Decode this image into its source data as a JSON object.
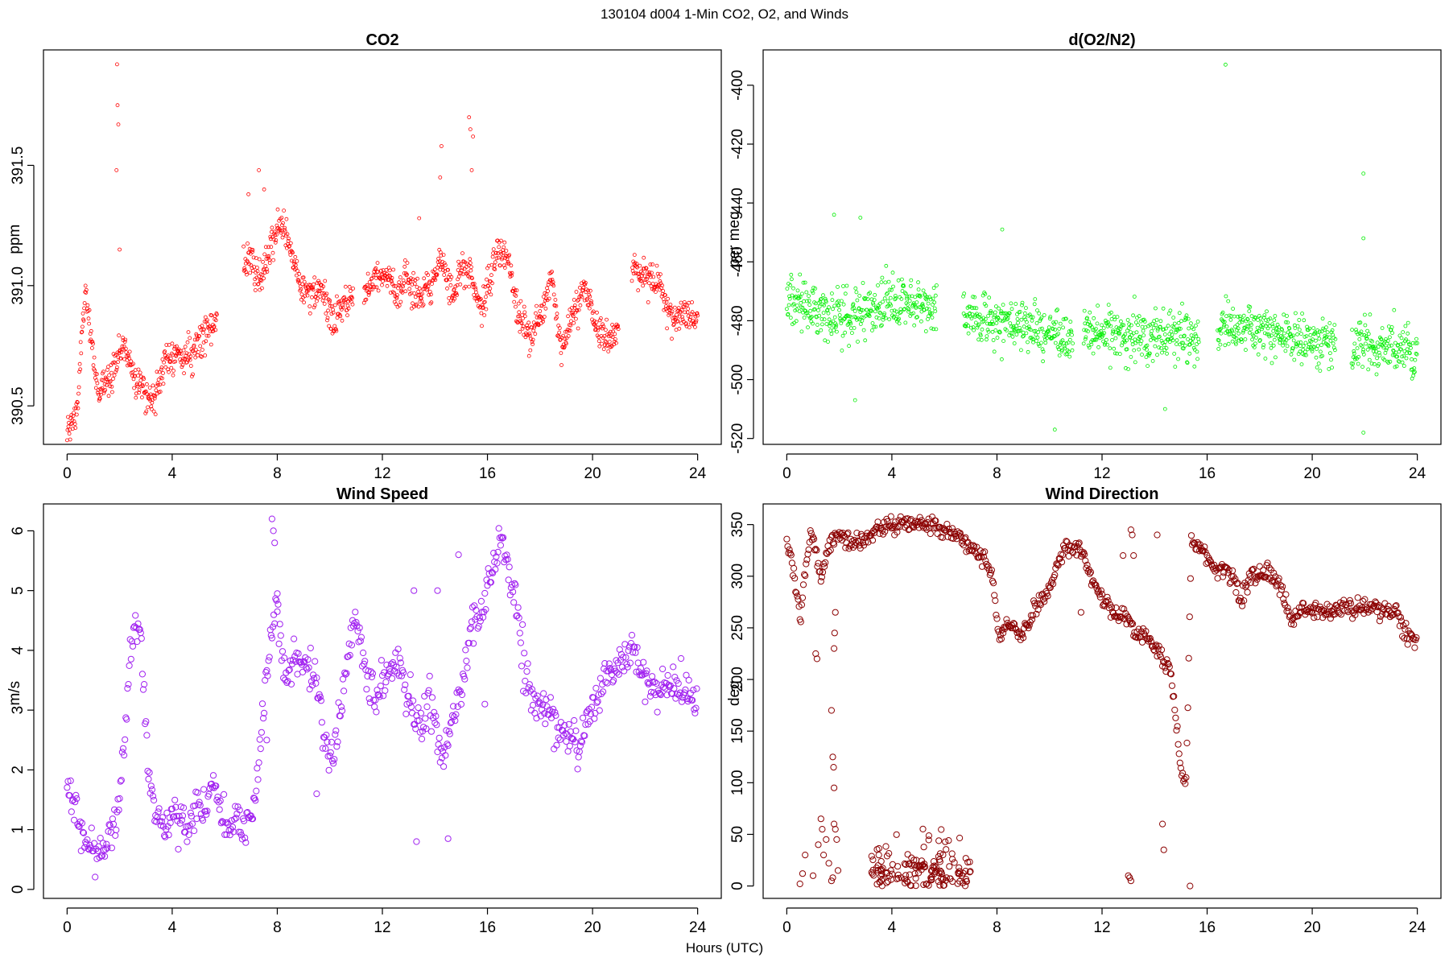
{
  "figure": {
    "title": "130104   d004   1-Min CO2, O2, and Winds",
    "xlabel": "Hours (UTC)"
  },
  "chart_data": [
    {
      "type": "scatter",
      "title": "CO2",
      "xlabel": "",
      "ylabel": "ppm",
      "color": "#ff0000",
      "marker_size": "small",
      "xlim": [
        -0.9,
        24.9
      ],
      "ylim": [
        390.34,
        391.98
      ],
      "xticks": [
        0,
        4,
        8,
        12,
        16,
        20,
        24
      ],
      "yticks": [
        390.5,
        391.0,
        391.5
      ],
      "ytick_labels": [
        "390.5",
        "391.0",
        "391.5"
      ],
      "anchors": [
        [
          0.0,
          390.38
        ],
        [
          0.2,
          390.43
        ],
        [
          0.4,
          390.5
        ],
        [
          0.6,
          390.85
        ],
        [
          0.7,
          391.0
        ],
        [
          0.8,
          390.85
        ],
        [
          1.2,
          390.55
        ],
        [
          1.5,
          390.6
        ],
        [
          1.9,
          390.7
        ],
        [
          2.2,
          390.75
        ],
        [
          2.5,
          390.65
        ],
        [
          3.0,
          390.55
        ],
        [
          3.3,
          390.52
        ],
        [
          3.6,
          390.65
        ],
        [
          4.0,
          390.72
        ],
        [
          4.4,
          390.7
        ],
        [
          4.8,
          390.72
        ],
        [
          5.2,
          390.82
        ],
        [
          5.6,
          390.82
        ],
        [
          6.8,
          391.1
        ],
        [
          7.0,
          391.1
        ],
        [
          7.4,
          391.0
        ],
        [
          7.8,
          391.2
        ],
        [
          8.2,
          391.25
        ],
        [
          8.5,
          391.15
        ],
        [
          8.9,
          391.0
        ],
        [
          9.3,
          390.95
        ],
        [
          9.7,
          390.98
        ],
        [
          10.1,
          390.85
        ],
        [
          10.5,
          390.92
        ],
        [
          10.8,
          390.95
        ],
        [
          11.3,
          390.95
        ],
        [
          11.7,
          391.05
        ],
        [
          12.2,
          391.05
        ],
        [
          12.6,
          390.95
        ],
        [
          12.9,
          391.05
        ],
        [
          13.3,
          390.95
        ],
        [
          13.8,
          391.0
        ],
        [
          14.3,
          391.1
        ],
        [
          14.7,
          390.95
        ],
        [
          15.0,
          391.1
        ],
        [
          15.3,
          391.05
        ],
        [
          15.5,
          391.0
        ],
        [
          15.8,
          390.9
        ],
        [
          16.4,
          391.15
        ],
        [
          16.8,
          391.1
        ],
        [
          17.1,
          390.92
        ],
        [
          17.6,
          390.78
        ],
        [
          18.1,
          390.88
        ],
        [
          18.4,
          391.05
        ],
        [
          18.8,
          390.75
        ],
        [
          19.2,
          390.85
        ],
        [
          19.7,
          391.0
        ],
        [
          20.2,
          390.8
        ],
        [
          20.6,
          390.78
        ],
        [
          20.9,
          390.8
        ],
        [
          21.6,
          391.08
        ],
        [
          22.3,
          391.02
        ],
        [
          22.6,
          391.0
        ],
        [
          23.0,
          390.85
        ],
        [
          23.6,
          390.88
        ],
        [
          23.9,
          390.87
        ]
      ],
      "gaps": [
        [
          5.7,
          6.7
        ],
        [
          10.9,
          11.3
        ],
        [
          21.0,
          21.5
        ]
      ],
      "noise": 0.05,
      "step_minutes": 1,
      "spikes": [
        [
          1.9,
          391.92
        ],
        [
          1.92,
          391.75
        ],
        [
          1.95,
          391.67
        ],
        [
          1.88,
          391.48
        ],
        [
          2.0,
          391.15
        ],
        [
          7.3,
          391.48
        ],
        [
          7.5,
          391.4
        ],
        [
          13.4,
          391.28
        ],
        [
          14.25,
          391.58
        ],
        [
          14.2,
          391.45
        ],
        [
          15.3,
          391.7
        ],
        [
          15.35,
          391.65
        ],
        [
          15.4,
          391.48
        ],
        [
          15.45,
          391.62
        ],
        [
          6.9,
          391.38
        ]
      ]
    },
    {
      "type": "scatter",
      "title": "d(O2/N2)",
      "xlabel": "",
      "ylabel": "per meg",
      "color": "#00ee00",
      "marker_size": "small",
      "xlim": [
        -0.9,
        24.9
      ],
      "ylim": [
        -522,
        -388
      ],
      "xticks": [
        0,
        4,
        8,
        12,
        16,
        20,
        24
      ],
      "yticks": [
        -520,
        -500,
        -480,
        -460,
        -440,
        -420,
        -400
      ],
      "ytick_labels": [
        "-520",
        "-500",
        "-480",
        "-460",
        "-440",
        "-420",
        "-400"
      ],
      "anchors": [
        [
          0.0,
          -472
        ],
        [
          1.0,
          -476
        ],
        [
          2.0,
          -478
        ],
        [
          3.0,
          -477
        ],
        [
          4.0,
          -474
        ],
        [
          5.0,
          -474
        ],
        [
          5.6,
          -476
        ],
        [
          6.8,
          -478
        ],
        [
          8.0,
          -480
        ],
        [
          9.0,
          -482
        ],
        [
          10.0,
          -484
        ],
        [
          10.9,
          -486
        ],
        [
          11.3,
          -484
        ],
        [
          12.0,
          -484
        ],
        [
          13.0,
          -485
        ],
        [
          14.0,
          -485
        ],
        [
          15.0,
          -485
        ],
        [
          15.6,
          -486
        ],
        [
          16.5,
          -482
        ],
        [
          17.5,
          -482
        ],
        [
          18.5,
          -484
        ],
        [
          19.5,
          -486
        ],
        [
          20.5,
          -488
        ],
        [
          20.9,
          -488
        ],
        [
          21.6,
          -488
        ],
        [
          22.5,
          -490
        ],
        [
          23.5,
          -490
        ],
        [
          24.0,
          -490
        ]
      ],
      "gaps": [
        [
          5.7,
          6.7
        ],
        [
          10.9,
          11.3
        ],
        [
          15.7,
          16.4
        ],
        [
          20.9,
          21.5
        ]
      ],
      "noise": 6,
      "step_minutes": 1,
      "spikes": [
        [
          16.7,
          -393
        ],
        [
          21.95,
          -430
        ],
        [
          21.95,
          -452
        ],
        [
          21.95,
          -518
        ],
        [
          10.2,
          -517
        ],
        [
          2.6,
          -507
        ],
        [
          14.4,
          -510
        ],
        [
          1.8,
          -444
        ],
        [
          2.8,
          -445
        ],
        [
          8.2,
          -449
        ]
      ]
    },
    {
      "type": "scatter",
      "title": "Wind Speed",
      "xlabel": "",
      "ylabel": "m/s",
      "color": "#a020f0",
      "marker_size": "large",
      "xlim": [
        -0.9,
        24.9
      ],
      "ylim": [
        -0.15,
        6.45
      ],
      "xticks": [
        0,
        4,
        8,
        12,
        16,
        20,
        24
      ],
      "yticks": [
        0,
        1,
        2,
        3,
        4,
        5,
        6
      ],
      "ytick_labels": [
        "0",
        "1",
        "2",
        "3",
        "4",
        "5",
        "6"
      ],
      "anchors": [
        [
          0.0,
          1.8
        ],
        [
          0.3,
          1.2
        ],
        [
          0.6,
          0.8
        ],
        [
          1.0,
          0.7
        ],
        [
          1.3,
          0.6
        ],
        [
          1.6,
          1.0
        ],
        [
          1.9,
          1.2
        ],
        [
          2.2,
          2.7
        ],
        [
          2.5,
          4.4
        ],
        [
          2.8,
          4.2
        ],
        [
          3.1,
          2.0
        ],
        [
          3.4,
          1.2
        ],
        [
          3.8,
          1.1
        ],
        [
          4.1,
          1.2
        ],
        [
          4.5,
          1.0
        ],
        [
          4.9,
          1.4
        ],
        [
          5.3,
          1.5
        ],
        [
          5.6,
          1.8
        ],
        [
          6.0,
          1.0
        ],
        [
          6.4,
          1.2
        ],
        [
          6.8,
          1.0
        ],
        [
          7.2,
          1.6
        ],
        [
          7.5,
          3.2
        ],
        [
          7.8,
          4.4
        ],
        [
          8.0,
          4.8
        ],
        [
          8.3,
          3.4
        ],
        [
          8.6,
          3.8
        ],
        [
          9.0,
          3.8
        ],
        [
          9.4,
          3.6
        ],
        [
          9.7,
          2.8
        ],
        [
          10.0,
          2.2
        ],
        [
          10.3,
          2.6
        ],
        [
          10.6,
          3.6
        ],
        [
          11.0,
          4.6
        ],
        [
          11.4,
          3.6
        ],
        [
          11.8,
          3.2
        ],
        [
          12.2,
          3.6
        ],
        [
          12.6,
          3.8
        ],
        [
          13.0,
          3.2
        ],
        [
          13.4,
          2.6
        ],
        [
          13.8,
          3.2
        ],
        [
          14.2,
          2.2
        ],
        [
          14.6,
          2.8
        ],
        [
          15.0,
          3.4
        ],
        [
          15.4,
          4.4
        ],
        [
          15.8,
          4.6
        ],
        [
          16.2,
          5.4
        ],
        [
          16.5,
          5.9
        ],
        [
          16.8,
          5.3
        ],
        [
          17.1,
          4.8
        ],
        [
          17.4,
          3.6
        ],
        [
          17.8,
          3.2
        ],
        [
          18.2,
          3.0
        ],
        [
          18.6,
          2.8
        ],
        [
          19.0,
          2.6
        ],
        [
          19.4,
          2.5
        ],
        [
          19.8,
          2.8
        ],
        [
          20.2,
          3.2
        ],
        [
          20.6,
          3.6
        ],
        [
          21.0,
          3.7
        ],
        [
          21.4,
          4.0
        ],
        [
          21.8,
          3.8
        ],
        [
          22.2,
          3.4
        ],
        [
          22.6,
          3.3
        ],
        [
          23.0,
          3.4
        ],
        [
          23.4,
          3.3
        ],
        [
          23.8,
          3.2
        ],
        [
          24.0,
          3.1
        ]
      ],
      "gaps": [],
      "noise": 0.25,
      "step_minutes": 2,
      "spikes": [
        [
          7.8,
          6.2
        ],
        [
          7.85,
          6.0
        ],
        [
          7.9,
          5.8
        ],
        [
          8.0,
          4.95
        ],
        [
          9.5,
          1.6
        ],
        [
          13.3,
          0.8
        ],
        [
          13.2,
          5.0
        ],
        [
          14.1,
          5.0
        ],
        [
          14.5,
          0.85
        ],
        [
          14.9,
          5.6
        ],
        [
          15.9,
          3.1
        ],
        [
          7.6,
          2.5
        ]
      ]
    },
    {
      "type": "scatter",
      "title": "Wind Direction",
      "xlabel": "",
      "ylabel": "deg",
      "color": "#8b0000",
      "marker_size": "large",
      "xlim": [
        -0.9,
        24.9
      ],
      "ylim": [
        -12,
        370
      ],
      "xticks": [
        0,
        4,
        8,
        12,
        16,
        20,
        24
      ],
      "yticks": [
        0,
        50,
        100,
        150,
        200,
        250,
        300,
        350
      ],
      "ytick_labels": [
        "0",
        "50",
        "100",
        "150",
        "200",
        "250",
        "300",
        "350"
      ],
      "anchors": [
        [
          0.0,
          335
        ],
        [
          0.3,
          300
        ],
        [
          0.5,
          260
        ],
        [
          0.9,
          345
        ],
        [
          1.3,
          300
        ],
        [
          1.6,
          330
        ],
        [
          2.0,
          340
        ],
        [
          2.5,
          330
        ],
        [
          3.0,
          335
        ],
        [
          3.4,
          345
        ],
        [
          4.0,
          350
        ],
        [
          5.0,
          352
        ],
        [
          6.0,
          345
        ],
        [
          6.6,
          340
        ],
        [
          7.0,
          325
        ],
        [
          7.5,
          320
        ],
        [
          7.8,
          300
        ],
        [
          8.1,
          240
        ],
        [
          8.5,
          255
        ],
        [
          9.0,
          240
        ],
        [
          9.5,
          270
        ],
        [
          10.0,
          290
        ],
        [
          10.5,
          322
        ],
        [
          10.9,
          330
        ],
        [
          11.3,
          320
        ],
        [
          11.6,
          300
        ],
        [
          12.0,
          280
        ],
        [
          12.5,
          262
        ],
        [
          13.0,
          260
        ],
        [
          13.3,
          245
        ],
        [
          13.8,
          240
        ],
        [
          14.2,
          225
        ],
        [
          14.6,
          210
        ],
        [
          14.8,
          160
        ],
        [
          15.0,
          110
        ],
        [
          15.2,
          100
        ],
        [
          15.4,
          335
        ],
        [
          15.8,
          325
        ],
        [
          16.2,
          310
        ],
        [
          16.6,
          305
        ],
        [
          17.0,
          300
        ],
        [
          17.3,
          275
        ],
        [
          17.6,
          300
        ],
        [
          18.0,
          305
        ],
        [
          18.4,
          300
        ],
        [
          18.8,
          290
        ],
        [
          19.2,
          255
        ],
        [
          19.6,
          270
        ],
        [
          20.2,
          265
        ],
        [
          20.8,
          265
        ],
        [
          21.3,
          268
        ],
        [
          21.8,
          272
        ],
        [
          22.3,
          270
        ],
        [
          22.8,
          265
        ],
        [
          23.2,
          268
        ],
        [
          23.6,
          240
        ],
        [
          23.9,
          240
        ]
      ],
      "gaps": [],
      "noise": 6,
      "step_minutes": 2,
      "low_cluster": {
        "x0": 3.2,
        "x1": 7.0,
        "y0": 0,
        "y1": 45,
        "n": 150
      },
      "spikes": [
        [
          0.5,
          2
        ],
        [
          0.6,
          12
        ],
        [
          0.7,
          30
        ],
        [
          1.0,
          10
        ],
        [
          1.2,
          40
        ],
        [
          1.3,
          65
        ],
        [
          1.35,
          55
        ],
        [
          1.4,
          30
        ],
        [
          1.5,
          45
        ],
        [
          1.6,
          22
        ],
        [
          1.7,
          5
        ],
        [
          1.75,
          8
        ],
        [
          1.8,
          60
        ],
        [
          1.85,
          55
        ],
        [
          1.9,
          45
        ],
        [
          1.95,
          15
        ],
        [
          1.7,
          170
        ],
        [
          1.75,
          125
        ],
        [
          1.78,
          115
        ],
        [
          1.8,
          95
        ],
        [
          1.8,
          230
        ],
        [
          1.82,
          245
        ],
        [
          1.85,
          265
        ],
        [
          1.1,
          225
        ],
        [
          1.15,
          220
        ],
        [
          13.0,
          10
        ],
        [
          13.05,
          8
        ],
        [
          13.1,
          5
        ],
        [
          13.1,
          345
        ],
        [
          13.15,
          340
        ],
        [
          13.2,
          320
        ],
        [
          14.1,
          340
        ],
        [
          14.3,
          60
        ],
        [
          14.35,
          35
        ],
        [
          15.35,
          0
        ],
        [
          11.2,
          265
        ],
        [
          12.8,
          320
        ]
      ]
    }
  ]
}
